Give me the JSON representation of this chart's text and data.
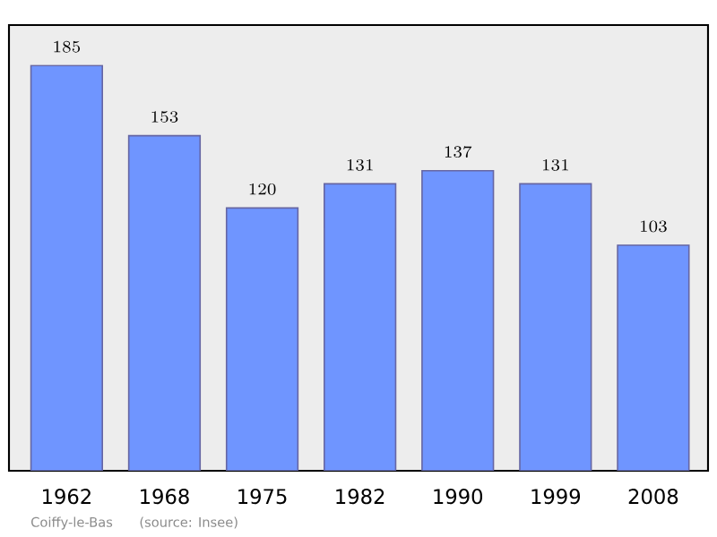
{
  "chart_data": {
    "type": "bar",
    "categories": [
      "1962",
      "1968",
      "1975",
      "1982",
      "1990",
      "1999",
      "2008"
    ],
    "values": [
      185,
      153,
      120,
      131,
      137,
      131,
      103
    ],
    "color": "#6f95ff",
    "data_labels": true,
    "annotations": [
      "Coiffy-le-Bas",
      "(source: Insee)"
    ]
  }
}
